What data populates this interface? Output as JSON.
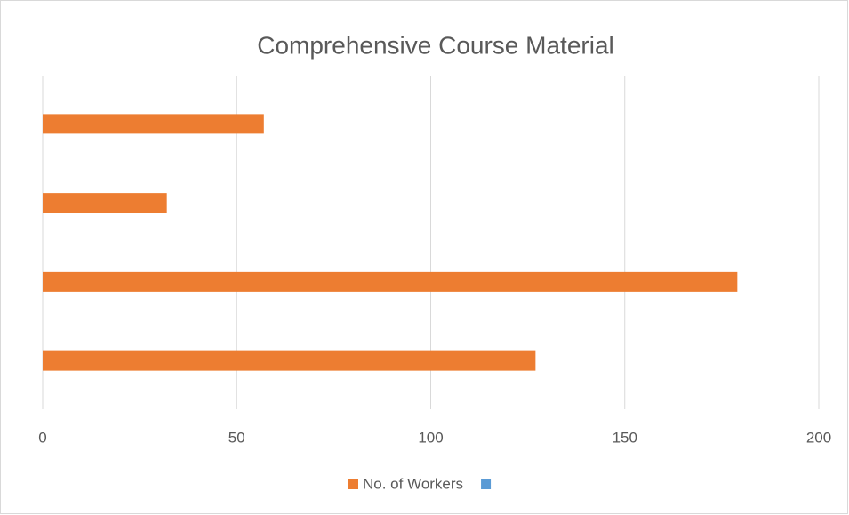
{
  "chart_data": {
    "type": "hbar",
    "title": "Comprehensive Course Material",
    "categories": [
      null,
      null,
      null,
      null
    ],
    "series": [
      {
        "name": "No. of Workers",
        "color": "#ed7d31",
        "values": [
          57,
          32,
          179,
          127
        ]
      },
      {
        "name": null,
        "color": "#5b9bd5",
        "values": [
          null,
          null,
          null,
          null
        ]
      }
    ],
    "xlim": [
      0,
      200
    ],
    "xticks": [
      0,
      50,
      100,
      150,
      200
    ],
    "grid": true,
    "legend": "bottom"
  }
}
